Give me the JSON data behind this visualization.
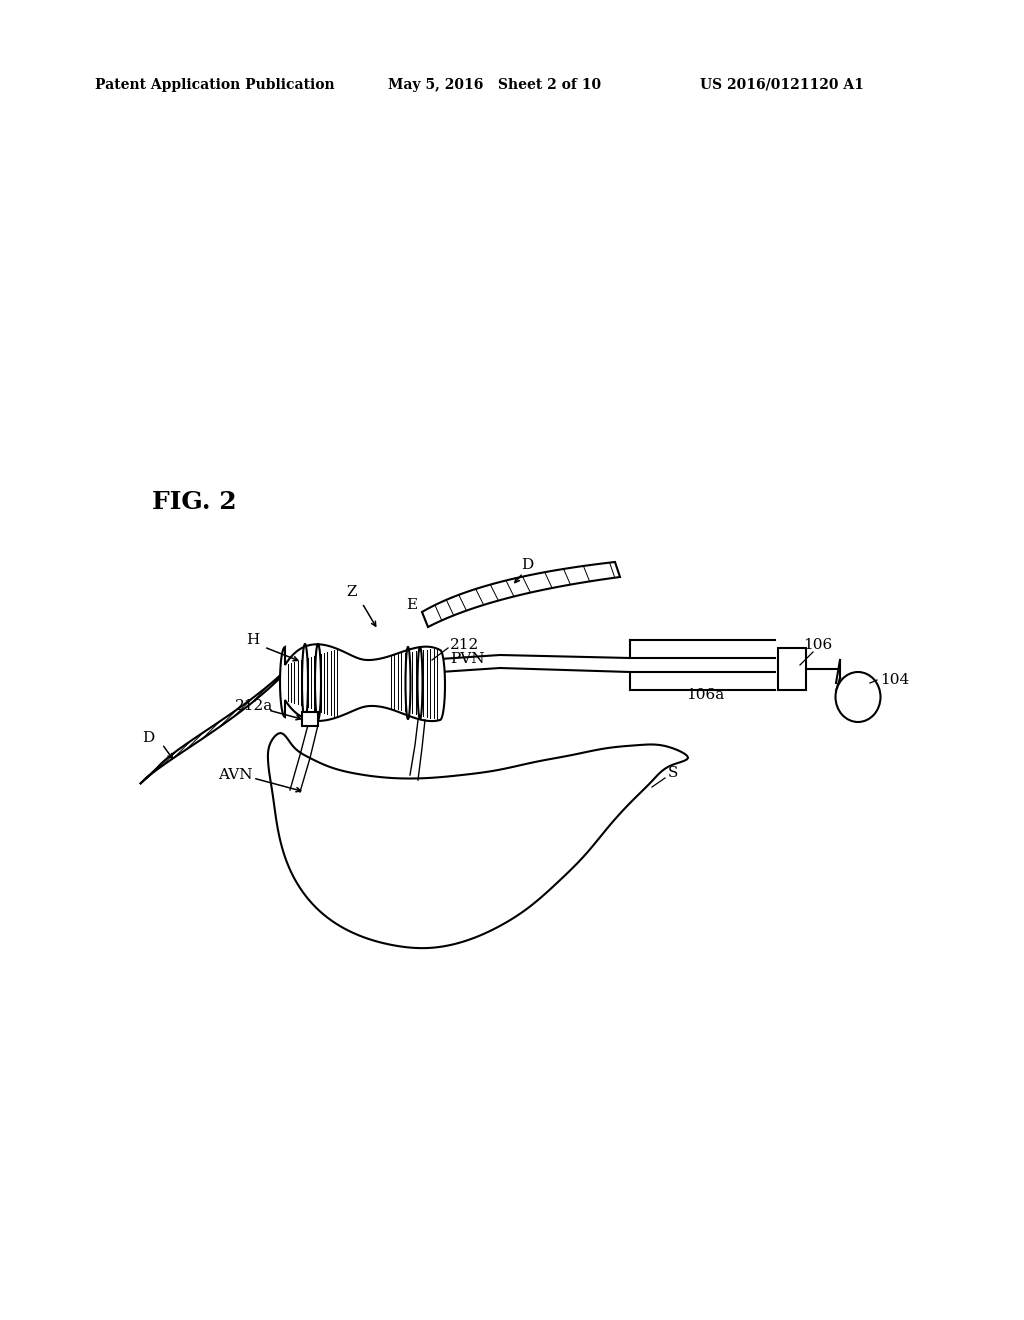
{
  "background_color": "#ffffff",
  "header_left": "Patent Application Publication",
  "header_center": "May 5, 2016   Sheet 2 of 10",
  "header_right": "US 2016/0121120 A1",
  "fig_label": "FIG. 2",
  "label_D_left": "D",
  "label_D_right": "D",
  "label_H": "H",
  "label_Z": "Z",
  "label_E": "E",
  "label_212": "212",
  "label_212a": "212a",
  "label_PVN": "PVN",
  "label_AVN": "AVN",
  "label_106": "106",
  "label_106a": "106a",
  "label_104": "104",
  "label_S": "S",
  "line_color": "#000000",
  "header_fontsize": 10,
  "label_fontsize": 11,
  "figlabel_fontsize": 18
}
